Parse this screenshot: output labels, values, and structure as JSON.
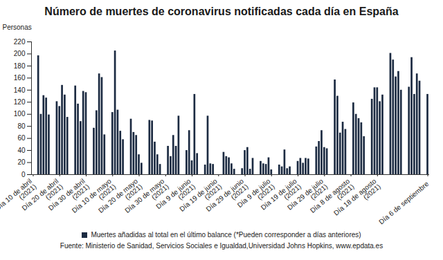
{
  "chart_data": {
    "type": "bar",
    "title": "Número de muertes de coronavirus notificadas cada día en España",
    "ylabel": "Personas",
    "source": "Fuente: Ministerio de Sanidad, Servicios Sociales e Igualdad,Universidad Johns Hopkins, www.epdata.es",
    "legend": "bottom",
    "grid": false,
    "ylim": [
      0,
      220
    ],
    "yticks": [
      0,
      20,
      40,
      60,
      80,
      100,
      120,
      140,
      160,
      180,
      200,
      220
    ],
    "categories": [
      "Día 10 de abril (2021)",
      null,
      null,
      null,
      null,
      null,
      null,
      null,
      null,
      null,
      "Día 20 de abril (2021)",
      null,
      null,
      null,
      null,
      null,
      null,
      null,
      null,
      null,
      "Día 30 de abril (2021)",
      null,
      null,
      null,
      null,
      null,
      null,
      null,
      null,
      null,
      "Día 10 de mayo (2021)",
      null,
      null,
      null,
      null,
      null,
      null,
      null,
      null,
      null,
      "Día 20 de mayo (2021)",
      null,
      null,
      null,
      null,
      null,
      null,
      null,
      null,
      null,
      "Día 30 de mayo (2021)",
      null,
      null,
      null,
      null,
      null,
      null,
      null,
      null,
      null,
      "Día 9 de junio (2021)",
      null,
      null,
      null,
      null,
      null,
      null,
      null,
      null,
      null,
      "Día 19 de junio (2021)",
      null,
      null,
      null,
      null,
      null,
      null,
      null,
      null,
      null,
      "Día 29 de junio (2021)",
      null,
      null,
      null,
      null,
      null,
      null,
      null,
      null,
      null,
      "Día 9 de julio (2021)",
      null,
      null,
      null,
      null,
      null,
      null,
      null,
      null,
      null,
      "Día 19 de julio (2021)",
      null,
      null,
      null,
      null,
      null,
      null,
      null,
      null,
      null,
      "Día 29 de julio (2021)",
      null,
      null,
      null,
      null,
      null,
      null,
      null,
      null,
      null,
      "Día 8 de agosto (2021)",
      null,
      null,
      null,
      null,
      null,
      null,
      null,
      null,
      null,
      "Día 18 de agosto (2021)",
      null,
      null,
      null,
      null,
      null,
      null,
      null,
      null,
      null,
      null,
      null,
      null,
      null,
      null,
      null,
      null,
      null,
      null,
      "Día 6 de septiembre"
    ],
    "series": [
      {
        "name": "Muertes añadidas al total en el último balance (*Pueden corresponder a días anteriores)",
        "color": "#1b2a41",
        "values": [
          null,
          null,
          197,
          100,
          131,
          127,
          99,
          null,
          null,
          121,
          113,
          148,
          132,
          95,
          null,
          null,
          147,
          117,
          88,
          138,
          136,
          null,
          null,
          77,
          106,
          167,
          161,
          66,
          null,
          null,
          103,
          205,
          107,
          72,
          58,
          null,
          null,
          92,
          70,
          65,
          33,
          19,
          null,
          null,
          90,
          89,
          54,
          33,
          17,
          null,
          null,
          47,
          30,
          65,
          47,
          97,
          null,
          null,
          40,
          73,
          23,
          133,
          35,
          null,
          null,
          16,
          97,
          18,
          17,
          null,
          null,
          null,
          37,
          30,
          28,
          18,
          9,
          null,
          null,
          10,
          40,
          45,
          9,
          27,
          null,
          null,
          22,
          18,
          17,
          28,
          8,
          null,
          null,
          16,
          13,
          41,
          10,
          13,
          null,
          null,
          22,
          27,
          19,
          27,
          26,
          null,
          null,
          46,
          55,
          73,
          45,
          43,
          null,
          null,
          157,
          130,
          69,
          87,
          75,
          null,
          null,
          119,
          100,
          93,
          86,
          63,
          null,
          null,
          125,
          144,
          144,
          121,
          132,
          null,
          null,
          201,
          190,
          162,
          171,
          140,
          null,
          null,
          145,
          194,
          133,
          167,
          155,
          null,
          null,
          133
        ]
      }
    ]
  }
}
